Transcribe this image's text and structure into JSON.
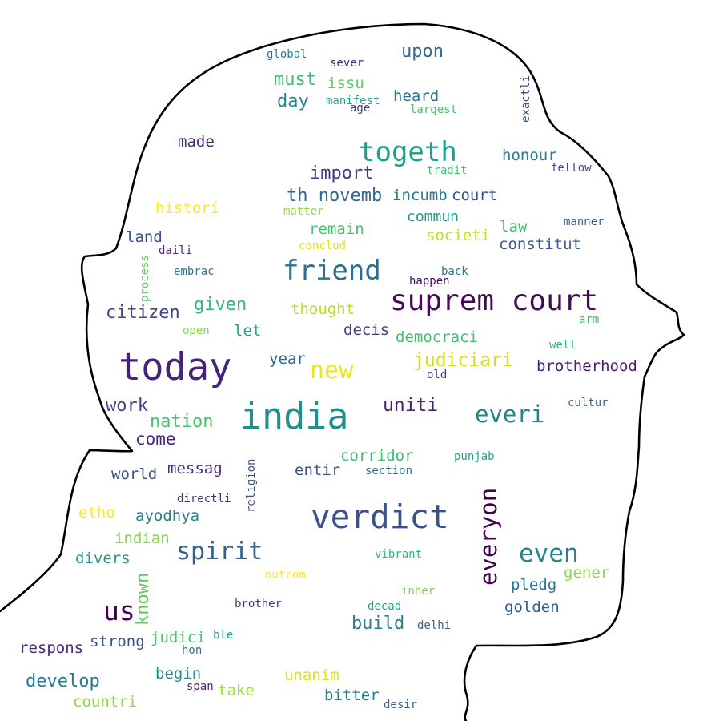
{
  "words": [
    {
      "text": "today",
      "color": "#46237a"
    },
    {
      "text": "india",
      "color": "#21908d"
    },
    {
      "text": "verdict",
      "color": "#3b518b"
    },
    {
      "text": "suprem court",
      "color": "#440b54"
    },
    {
      "text": "friend",
      "color": "#2d6f8e"
    },
    {
      "text": "togeth",
      "color": "#1fa088"
    },
    {
      "text": "spirit",
      "color": "#33638d"
    },
    {
      "text": "even",
      "color": "#26828e"
    },
    {
      "text": "everyon",
      "color": "#440154"
    },
    {
      "text": "us",
      "color": "#440154"
    },
    {
      "text": "new",
      "color": "#f1e51d"
    },
    {
      "text": "everi",
      "color": "#26828e"
    },
    {
      "text": "uniti",
      "color": "#46256b"
    },
    {
      "text": "judiciari",
      "color": "#d2e21b"
    },
    {
      "text": "nation",
      "color": "#4ac16d"
    },
    {
      "text": "work",
      "color": "#414487"
    },
    {
      "text": "come",
      "color": "#482878"
    },
    {
      "text": "citizen",
      "color": "#3e4989"
    },
    {
      "text": "given",
      "color": "#35b779"
    },
    {
      "text": "import",
      "color": "#453781"
    },
    {
      "text": "th novemb",
      "color": "#31688e"
    },
    {
      "text": "incumb",
      "color": "#2a788e"
    },
    {
      "text": "court",
      "color": "#3b528b"
    },
    {
      "text": "commun",
      "color": "#1f988b"
    },
    {
      "text": "remain",
      "color": "#4ac16d"
    },
    {
      "text": "societi",
      "color": "#bddf26"
    },
    {
      "text": "law",
      "color": "#3dbc74"
    },
    {
      "text": "constitut",
      "color": "#365c8d"
    },
    {
      "text": "honour",
      "color": "#26828e"
    },
    {
      "text": "fellow",
      "color": "#3e4a89"
    },
    {
      "text": "manner",
      "color": "#35608d"
    },
    {
      "text": "brotherhood",
      "color": "#481f70"
    },
    {
      "text": "democraci",
      "color": "#44bf70"
    },
    {
      "text": "decis",
      "color": "#433e85"
    },
    {
      "text": "year",
      "color": "#31688e"
    },
    {
      "text": "let",
      "color": "#20a486"
    },
    {
      "text": "thought",
      "color": "#b5de2b"
    },
    {
      "text": "historí",
      "color": "#fde725"
    },
    {
      "text": "land",
      "color": "#3b528b"
    },
    {
      "text": "made",
      "color": "#482878"
    },
    {
      "text": "must",
      "color": "#3dbc74"
    },
    {
      "text": "day",
      "color": "#26828e"
    },
    {
      "text": "issu",
      "color": "#5ec962"
    },
    {
      "text": "upon",
      "color": "#31688e"
    },
    {
      "text": "heard",
      "color": "#2c728e"
    },
    {
      "text": "corridor",
      "color": "#42be71"
    },
    {
      "text": "entir",
      "color": "#3a548c"
    },
    {
      "text": "messag",
      "color": "#46307e"
    },
    {
      "text": "world",
      "color": "#3b528b"
    },
    {
      "text": "ayodhya",
      "color": "#26828e"
    },
    {
      "text": "indian",
      "color": "#84d44b"
    },
    {
      "text": "divers",
      "color": "#1e9b8a"
    },
    {
      "text": "etho",
      "color": "#fde725"
    },
    {
      "text": "known",
      "color": "#5ec962"
    },
    {
      "text": "strong",
      "color": "#3b528b"
    },
    {
      "text": "judici",
      "color": "#4ac16d"
    },
    {
      "text": "respons",
      "color": "#482878"
    },
    {
      "text": "develop",
      "color": "#2a788e"
    },
    {
      "text": "countri",
      "color": "#90d743"
    },
    {
      "text": "begin",
      "color": "#21918c"
    },
    {
      "text": "take",
      "color": "#a0da39"
    },
    {
      "text": "unanim",
      "color": "#dde318"
    },
    {
      "text": "bitter",
      "color": "#277f8e"
    },
    {
      "text": "build",
      "color": "#26828e"
    },
    {
      "text": "golden",
      "color": "#355f8d"
    },
    {
      "text": "pledg",
      "color": "#2b748e"
    },
    {
      "text": "gener",
      "color": "#8fd744"
    },
    {
      "text": "global",
      "color": "#2a788e"
    },
    {
      "text": "sever",
      "color": "#482878"
    },
    {
      "text": "manifest",
      "color": "#22a785"
    },
    {
      "text": "age",
      "color": "#443983"
    },
    {
      "text": "largest",
      "color": "#4ac16d"
    },
    {
      "text": "exactli",
      "color": "#3b528b"
    },
    {
      "text": "tradit",
      "color": "#4ac16d"
    },
    {
      "text": "matter",
      "color": "#8fd744"
    },
    {
      "text": "conclud",
      "color": "#dde318"
    },
    {
      "text": "daili",
      "color": "#482878"
    },
    {
      "text": "embrac",
      "color": "#2a788e"
    },
    {
      "text": "process",
      "color": "#5ec962"
    },
    {
      "text": "back",
      "color": "#2a788e"
    },
    {
      "text": "happen",
      "color": "#46085c"
    },
    {
      "text": "arm",
      "color": "#4ac16d"
    },
    {
      "text": "well",
      "color": "#35b779"
    },
    {
      "text": "old",
      "color": "#46307e"
    },
    {
      "text": "cultur",
      "color": "#31688e"
    },
    {
      "text": "open",
      "color": "#84d44b"
    },
    {
      "text": "punjab",
      "color": "#20a486"
    },
    {
      "text": "section",
      "color": "#2c728e"
    },
    {
      "text": "religion",
      "color": "#3b528b"
    },
    {
      "text": "directli",
      "color": "#46307e"
    },
    {
      "text": "vibrant",
      "color": "#35b779"
    },
    {
      "text": "outcom",
      "color": "#fde725"
    },
    {
      "text": "brother",
      "color": "#46307e"
    },
    {
      "text": "inher",
      "color": "#84d44b"
    },
    {
      "text": "decad",
      "color": "#22a785"
    },
    {
      "text": "delhi",
      "color": "#31688e"
    },
    {
      "text": "ble",
      "color": "#20a486"
    },
    {
      "text": "hon",
      "color": "#2c728e"
    },
    {
      "text": "span",
      "color": "#481f70"
    },
    {
      "text": "desir",
      "color": "#33638d"
    }
  ]
}
